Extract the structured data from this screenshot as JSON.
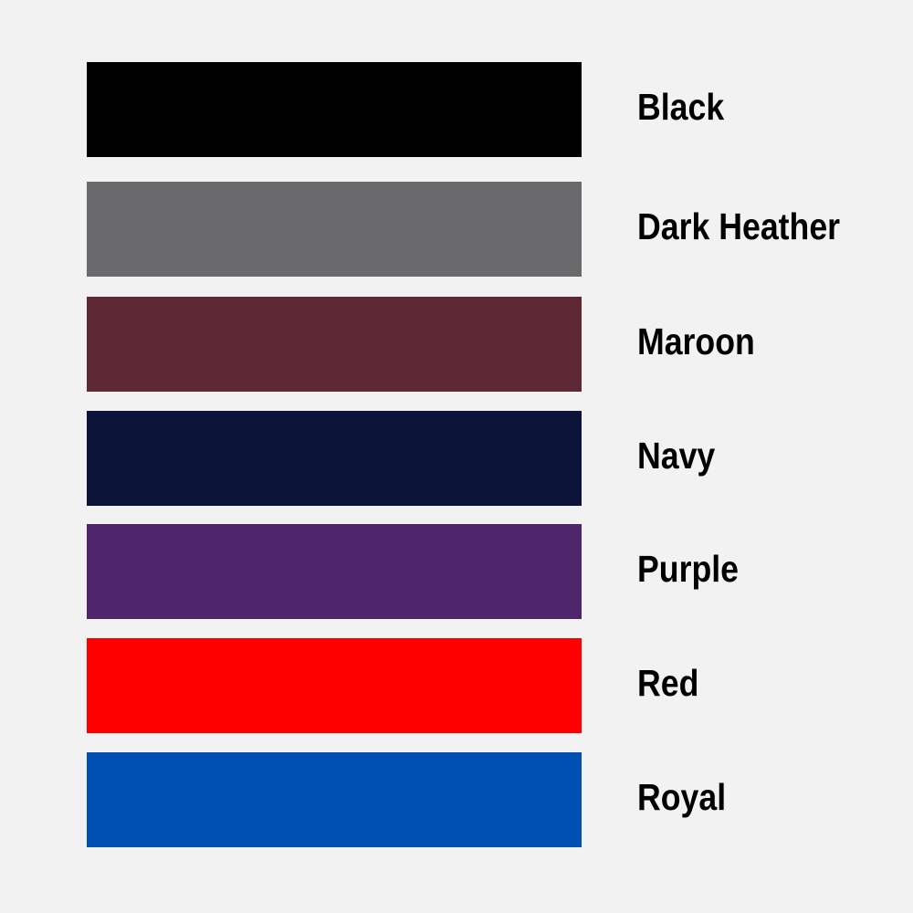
{
  "swatches": [
    {
      "label": "Black",
      "color": "#000000"
    },
    {
      "label": "Dark Heather",
      "color": "#6a6a6c"
    },
    {
      "label": "Maroon",
      "color": "#5e2934"
    },
    {
      "label": "Navy",
      "color": "#0c1539"
    },
    {
      "label": "Purple",
      "color": "#4f266b"
    },
    {
      "label": "Red",
      "color": "#ff0000"
    },
    {
      "label": "Royal",
      "color": "#0050b4"
    }
  ]
}
